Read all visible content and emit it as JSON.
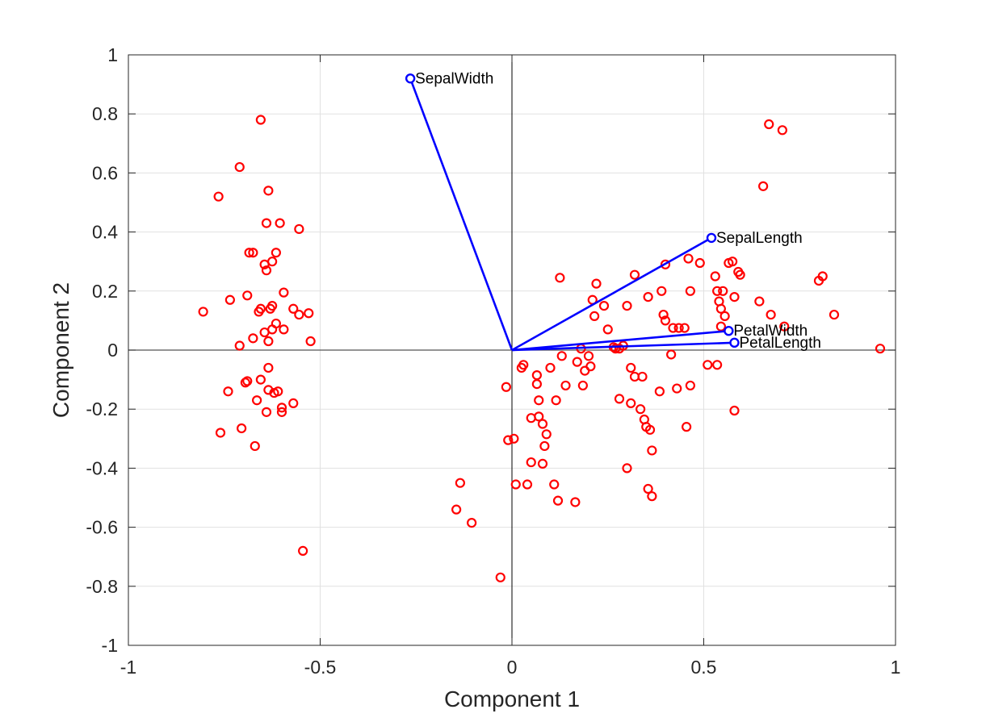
{
  "colors": {
    "background": "#ffffff",
    "grid": "#e1e1e1",
    "axes": "#262626",
    "zero_lines": "#000000",
    "points": "#ff0000",
    "vectors": "#0000ff"
  },
  "chart_data": {
    "type": "scatter",
    "title": "",
    "xlabel": "Component 1",
    "ylabel": "Component 2",
    "xlim": [
      -1,
      1
    ],
    "ylim": [
      -1,
      1
    ],
    "xticks": [
      -1,
      -0.5,
      0,
      0.5,
      1
    ],
    "xtick_labels": [
      "-1",
      "-0.5",
      "0",
      "0.5",
      "1"
    ],
    "yticks": [
      1,
      0.8,
      0.6,
      0.4,
      0.2,
      0,
      -0.2,
      -0.4,
      -0.6,
      -0.8,
      -1
    ],
    "ytick_labels": [
      "1",
      "0.8",
      "0.6",
      "0.4",
      "0.2",
      "0",
      "-0.2",
      "-0.4",
      "-0.6",
      "-0.8",
      "-1"
    ],
    "grid": true,
    "vectors": [
      {
        "label": "SepalWidth",
        "x": -0.265,
        "y": 0.92
      },
      {
        "label": "SepalLength",
        "x": 0.52,
        "y": 0.38
      },
      {
        "label": "PetalWidth",
        "x": 0.565,
        "y": 0.065
      },
      {
        "label": "PetalLength",
        "x": 0.58,
        "y": 0.025
      }
    ],
    "points": [
      [
        -0.805,
        0.13
      ],
      [
        -0.765,
        0.52
      ],
      [
        -0.76,
        -0.28
      ],
      [
        -0.735,
        0.17
      ],
      [
        -0.74,
        -0.14
      ],
      [
        -0.71,
        0.62
      ],
      [
        -0.71,
        0.015
      ],
      [
        -0.705,
        -0.265
      ],
      [
        -0.69,
        0.185
      ],
      [
        -0.69,
        -0.105
      ],
      [
        -0.685,
        0.33
      ],
      [
        -0.695,
        -0.11
      ],
      [
        -0.675,
        0.33
      ],
      [
        -0.675,
        0.04
      ],
      [
        -0.67,
        -0.325
      ],
      [
        -0.665,
        -0.17
      ],
      [
        -0.66,
        0.13
      ],
      [
        -0.655,
        0.78
      ],
      [
        -0.655,
        0.14
      ],
      [
        -0.655,
        -0.1
      ],
      [
        -0.645,
        0.29
      ],
      [
        -0.645,
        0.06
      ],
      [
        -0.64,
        0.43
      ],
      [
        -0.64,
        0.27
      ],
      [
        -0.64,
        -0.21
      ],
      [
        -0.635,
        0.54
      ],
      [
        -0.635,
        0.03
      ],
      [
        -0.635,
        -0.06
      ],
      [
        -0.635,
        -0.135
      ],
      [
        -0.63,
        0.14
      ],
      [
        -0.625,
        0.15
      ],
      [
        -0.625,
        0.07
      ],
      [
        -0.625,
        0.3
      ],
      [
        -0.62,
        -0.145
      ],
      [
        -0.615,
        0.33
      ],
      [
        -0.615,
        0.09
      ],
      [
        -0.61,
        -0.14
      ],
      [
        -0.605,
        0.43
      ],
      [
        -0.6,
        -0.195
      ],
      [
        -0.6,
        -0.21
      ],
      [
        -0.595,
        0.07
      ],
      [
        -0.595,
        0.195
      ],
      [
        -0.57,
        0.14
      ],
      [
        -0.57,
        -0.18
      ],
      [
        -0.555,
        0.41
      ],
      [
        -0.555,
        0.12
      ],
      [
        -0.545,
        -0.68
      ],
      [
        -0.53,
        0.125
      ],
      [
        -0.525,
        0.03
      ],
      [
        -0.135,
        -0.45
      ],
      [
        -0.145,
        -0.54
      ],
      [
        -0.105,
        -0.585
      ],
      [
        -0.03,
        -0.77
      ],
      [
        -0.015,
        -0.125
      ],
      [
        -0.01,
        -0.305
      ],
      [
        0.005,
        -0.3
      ],
      [
        0.01,
        -0.455
      ],
      [
        0.025,
        -0.06
      ],
      [
        0.03,
        -0.05
      ],
      [
        0.04,
        -0.455
      ],
      [
        0.05,
        -0.23
      ],
      [
        0.05,
        -0.38
      ],
      [
        0.065,
        -0.085
      ],
      [
        0.065,
        -0.115
      ],
      [
        0.07,
        -0.17
      ],
      [
        0.07,
        -0.225
      ],
      [
        0.08,
        -0.385
      ],
      [
        0.08,
        -0.25
      ],
      [
        0.085,
        -0.325
      ],
      [
        0.09,
        -0.285
      ],
      [
        0.1,
        -0.06
      ],
      [
        0.11,
        -0.455
      ],
      [
        0.115,
        -0.17
      ],
      [
        0.12,
        -0.51
      ],
      [
        0.125,
        0.245
      ],
      [
        0.13,
        -0.02
      ],
      [
        0.14,
        -0.12
      ],
      [
        0.165,
        -0.515
      ],
      [
        0.17,
        -0.04
      ],
      [
        0.18,
        0.005
      ],
      [
        0.185,
        -0.12
      ],
      [
        0.19,
        -0.07
      ],
      [
        0.2,
        -0.02
      ],
      [
        0.205,
        -0.055
      ],
      [
        0.21,
        0.17
      ],
      [
        0.215,
        0.115
      ],
      [
        0.22,
        0.225
      ],
      [
        0.24,
        0.15
      ],
      [
        0.25,
        0.07
      ],
      [
        0.265,
        0.01
      ],
      [
        0.27,
        0.005
      ],
      [
        0.28,
        -0.165
      ],
      [
        0.28,
        0.005
      ],
      [
        0.29,
        0.015
      ],
      [
        0.3,
        0.15
      ],
      [
        0.3,
        -0.4
      ],
      [
        0.31,
        -0.18
      ],
      [
        0.31,
        -0.06
      ],
      [
        0.32,
        0.255
      ],
      [
        0.32,
        -0.09
      ],
      [
        0.335,
        -0.2
      ],
      [
        0.34,
        -0.09
      ],
      [
        0.345,
        -0.235
      ],
      [
        0.35,
        -0.26
      ],
      [
        0.355,
        0.18
      ],
      [
        0.355,
        -0.47
      ],
      [
        0.36,
        -0.27
      ],
      [
        0.365,
        -0.34
      ],
      [
        0.365,
        -0.495
      ],
      [
        0.385,
        -0.14
      ],
      [
        0.39,
        0.2
      ],
      [
        0.395,
        0.12
      ],
      [
        0.4,
        0.1
      ],
      [
        0.4,
        0.29
      ],
      [
        0.415,
        -0.015
      ],
      [
        0.42,
        0.075
      ],
      [
        0.43,
        -0.13
      ],
      [
        0.435,
        0.075
      ],
      [
        0.45,
        0.075
      ],
      [
        0.455,
        -0.26
      ],
      [
        0.46,
        0.31
      ],
      [
        0.465,
        0.2
      ],
      [
        0.465,
        -0.12
      ],
      [
        0.49,
        0.295
      ],
      [
        0.51,
        -0.05
      ],
      [
        0.535,
        -0.05
      ],
      [
        0.53,
        0.25
      ],
      [
        0.535,
        0.2
      ],
      [
        0.54,
        0.165
      ],
      [
        0.545,
        0.08
      ],
      [
        0.545,
        0.14
      ],
      [
        0.55,
        0.2
      ],
      [
        0.555,
        0.115
      ],
      [
        0.565,
        0.295
      ],
      [
        0.575,
        0.3
      ],
      [
        0.58,
        0.18
      ],
      [
        0.58,
        -0.205
      ],
      [
        0.59,
        0.265
      ],
      [
        0.595,
        0.255
      ],
      [
        0.645,
        0.165
      ],
      [
        0.655,
        0.555
      ],
      [
        0.67,
        0.765
      ],
      [
        0.675,
        0.12
      ],
      [
        0.705,
        0.745
      ],
      [
        0.71,
        0.08
      ],
      [
        0.8,
        0.235
      ],
      [
        0.81,
        0.25
      ],
      [
        0.84,
        0.12
      ],
      [
        0.96,
        0.005
      ]
    ]
  }
}
